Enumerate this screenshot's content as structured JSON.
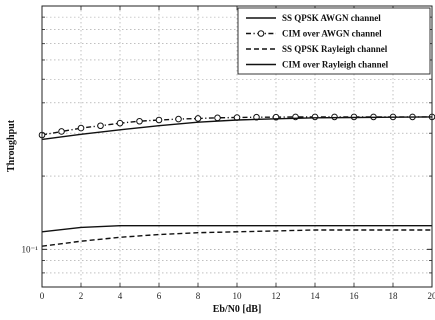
{
  "chart_data": {
    "type": "line",
    "xlabel": "Eb/N0 [dB]",
    "ylabel": "Throughput",
    "x_ticks": [
      0,
      2,
      4,
      6,
      8,
      10,
      12,
      14,
      16,
      18,
      20
    ],
    "xlim": [
      0,
      20
    ],
    "y_scale": "log",
    "ylim": [
      0.07,
      1.0
    ],
    "y_tick_label": "10⁻¹",
    "y_tick_value": 0.1,
    "grid": true,
    "legend_position": "top-right",
    "series": [
      {
        "name": "SS QPSK AWGN channel",
        "style": "solid",
        "x": [
          0,
          2,
          4,
          6,
          8,
          10,
          12,
          14,
          16,
          18,
          20
        ],
        "y": [
          0.118,
          0.123,
          0.125,
          0.125,
          0.125,
          0.125,
          0.125,
          0.125,
          0.125,
          0.125,
          0.125
        ]
      },
      {
        "name": "CIM over AWGN channel",
        "style": "dash-dot-circle",
        "x": [
          0,
          1,
          2,
          3,
          4,
          5,
          6,
          7,
          8,
          9,
          10,
          11,
          12,
          13,
          14,
          15,
          16,
          17,
          18,
          19,
          20
        ],
        "y": [
          0.295,
          0.305,
          0.315,
          0.322,
          0.33,
          0.336,
          0.34,
          0.343,
          0.345,
          0.347,
          0.348,
          0.349,
          0.349,
          0.35,
          0.35,
          0.35,
          0.35,
          0.35,
          0.35,
          0.35,
          0.35
        ]
      },
      {
        "name": "SS QPSK Rayleigh channel",
        "style": "dashed",
        "x": [
          0,
          2,
          4,
          6,
          8,
          10,
          12,
          14,
          16,
          18,
          20
        ],
        "y": [
          0.103,
          0.108,
          0.112,
          0.115,
          0.117,
          0.118,
          0.119,
          0.12,
          0.12,
          0.12,
          0.12
        ]
      },
      {
        "name": "CIM over Rayleigh channel",
        "style": "solid",
        "x": [
          0,
          2,
          4,
          6,
          8,
          10,
          12,
          14,
          16,
          18,
          20
        ],
        "y": [
          0.283,
          0.297,
          0.31,
          0.322,
          0.333,
          0.34,
          0.344,
          0.347,
          0.348,
          0.349,
          0.35
        ]
      }
    ]
  }
}
